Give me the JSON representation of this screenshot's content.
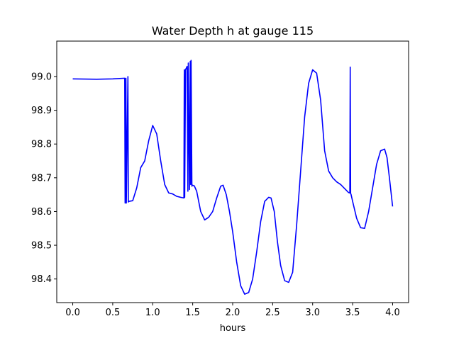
{
  "chart_data": {
    "type": "line",
    "title": "Water Depth h at gauge 115",
    "xlabel": "hours",
    "ylabel": "",
    "xlim": [
      -0.2,
      4.2
    ],
    "ylim": [
      98.33,
      99.105
    ],
    "grid": false,
    "x_ticks": [
      "0.0",
      "0.5",
      "1.0",
      "1.5",
      "2.0",
      "2.5",
      "3.0",
      "3.5",
      "4.0"
    ],
    "x_tick_values": [
      0.0,
      0.5,
      1.0,
      1.5,
      2.0,
      2.5,
      3.0,
      3.5,
      4.0
    ],
    "y_ticks": [
      "98.4",
      "98.5",
      "98.6",
      "98.7",
      "98.8",
      "98.9",
      "99.0"
    ],
    "y_tick_values": [
      98.4,
      98.5,
      98.6,
      98.7,
      98.8,
      98.9,
      99.0
    ],
    "series": [
      {
        "color": "#0000ff",
        "x": [
          0.0,
          0.3,
          0.5,
          0.65,
          0.655,
          0.665,
          0.67,
          0.69,
          0.695,
          0.7,
          0.75,
          0.8,
          0.85,
          0.9,
          0.95,
          1.0,
          1.05,
          1.1,
          1.15,
          1.2,
          1.25,
          1.3,
          1.35,
          1.39,
          1.395,
          1.4,
          1.41,
          1.43,
          1.44,
          1.445,
          1.46,
          1.47,
          1.475,
          1.48,
          1.49,
          1.495,
          1.52,
          1.55,
          1.6,
          1.65,
          1.7,
          1.75,
          1.8,
          1.85,
          1.88,
          1.92,
          1.96,
          2.0,
          2.05,
          2.1,
          2.15,
          2.2,
          2.25,
          2.3,
          2.35,
          2.4,
          2.45,
          2.48,
          2.52,
          2.56,
          2.6,
          2.65,
          2.7,
          2.75,
          2.8,
          2.85,
          2.9,
          2.95,
          3.0,
          3.05,
          3.1,
          3.15,
          3.2,
          3.25,
          3.3,
          3.35,
          3.4,
          3.45,
          3.465,
          3.47,
          3.475,
          3.48,
          3.5,
          3.55,
          3.6,
          3.65,
          3.7,
          3.75,
          3.8,
          3.85,
          3.9,
          3.93,
          3.96,
          4.0
        ],
        "values": [
          98.993,
          98.992,
          98.993,
          98.995,
          98.625,
          98.995,
          98.625,
          99.0,
          98.628,
          98.63,
          98.632,
          98.67,
          98.73,
          98.75,
          98.81,
          98.855,
          98.83,
          98.75,
          98.68,
          98.655,
          98.652,
          98.645,
          98.642,
          98.64,
          99.02,
          98.642,
          99.02,
          99.03,
          98.66,
          99.04,
          98.665,
          99.045,
          98.68,
          99.048,
          98.675,
          98.678,
          98.676,
          98.66,
          98.6,
          98.575,
          98.583,
          98.6,
          98.64,
          98.675,
          98.678,
          98.65,
          98.6,
          98.54,
          98.45,
          98.38,
          98.355,
          98.36,
          98.4,
          98.48,
          98.57,
          98.63,
          98.642,
          98.64,
          98.6,
          98.51,
          98.44,
          98.395,
          98.39,
          98.42,
          98.56,
          98.72,
          98.88,
          98.98,
          99.02,
          99.01,
          98.93,
          98.78,
          98.72,
          98.7,
          98.688,
          98.68,
          98.668,
          98.656,
          98.655,
          99.028,
          98.653,
          98.651,
          98.63,
          98.58,
          98.552,
          98.55,
          98.6,
          98.67,
          98.74,
          98.78,
          98.785,
          98.76,
          98.7,
          98.615
        ]
      }
    ]
  }
}
